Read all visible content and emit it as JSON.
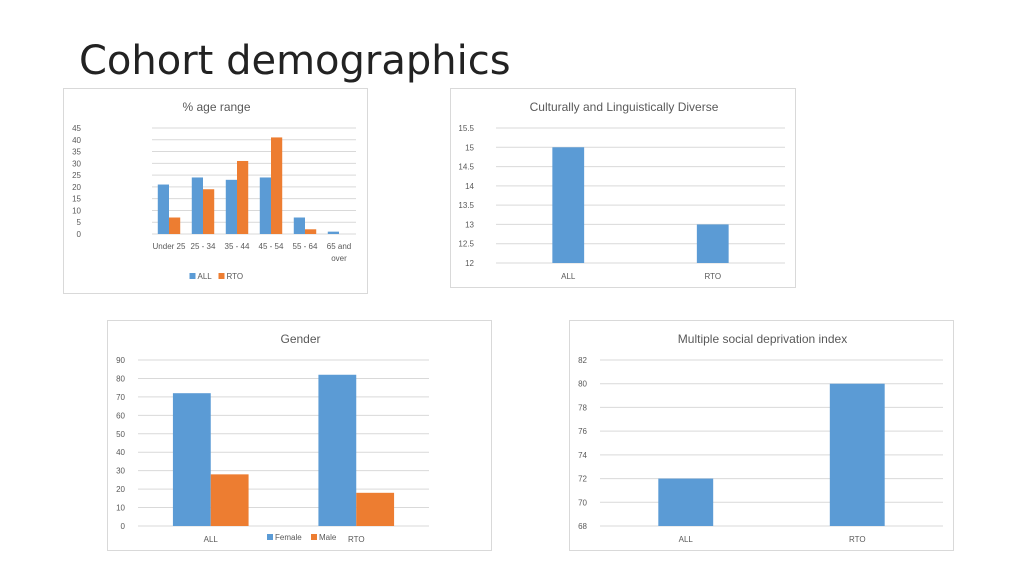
{
  "slide": {
    "title": "Cohort demographics"
  },
  "colors": {
    "all": "#5b9bd5",
    "rto": "#ed7d31",
    "grid": "#d9d9d9",
    "text": "#595959"
  },
  "chart_data": [
    {
      "id": "age",
      "type": "bar",
      "title": "% age range",
      "categories": [
        "Under 25",
        "25 - 34",
        "35 - 44",
        "45 - 54",
        "55 - 64",
        "65 and over"
      ],
      "series": [
        {
          "name": "ALL",
          "values": [
            21,
            24,
            23,
            24,
            7,
            1
          ]
        },
        {
          "name": "RTO",
          "values": [
            7,
            19,
            31,
            41,
            2,
            0
          ]
        }
      ],
      "ylim": [
        0,
        45
      ],
      "yticks": [
        0,
        5,
        10,
        15,
        20,
        25,
        30,
        35,
        40,
        45
      ],
      "grid": true,
      "legend": "bottom"
    },
    {
      "id": "cald",
      "type": "bar",
      "title": "Culturally and Linguistically Diverse",
      "categories": [
        "ALL",
        "RTO"
      ],
      "series": [
        {
          "values": [
            15,
            13
          ]
        }
      ],
      "ylim": [
        12,
        15.5
      ],
      "yticks": [
        12,
        12.5,
        13,
        13.5,
        14,
        14.5,
        15,
        15.5
      ],
      "grid": true
    },
    {
      "id": "gender",
      "type": "bar",
      "title": "Gender",
      "categories": [
        "ALL",
        "RTO"
      ],
      "series": [
        {
          "name": "Female",
          "values": [
            72,
            82
          ]
        },
        {
          "name": "Male",
          "values": [
            28,
            18
          ]
        }
      ],
      "ylim": [
        0,
        90
      ],
      "yticks": [
        0,
        10,
        20,
        30,
        40,
        50,
        60,
        70,
        80,
        90
      ],
      "grid": true,
      "legend": "bottom"
    },
    {
      "id": "msdi",
      "type": "bar",
      "title": "Multiple social deprivation index",
      "categories": [
        "ALL",
        "RTO"
      ],
      "series": [
        {
          "values": [
            72,
            80
          ]
        }
      ],
      "ylim": [
        68,
        82
      ],
      "yticks": [
        68,
        70,
        72,
        74,
        76,
        78,
        80,
        82
      ],
      "grid": true
    }
  ]
}
